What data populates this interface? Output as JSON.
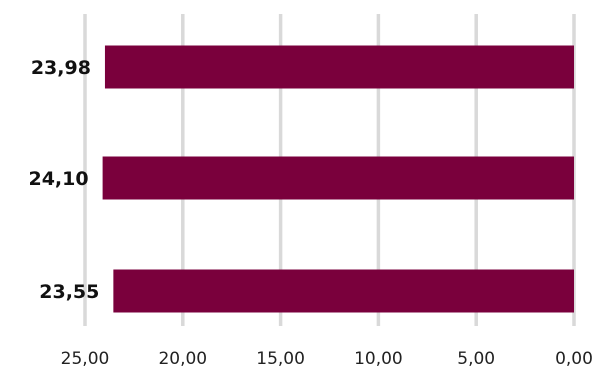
{
  "chart_data": {
    "type": "bar",
    "orientation": "horizontal",
    "x_axis": "reversed",
    "xlim": [
      25,
      0
    ],
    "xticks": [
      "25,00",
      "20,00",
      "15,00",
      "10,00",
      "5,00",
      "0,00"
    ],
    "xtick_values": [
      25,
      20,
      15,
      10,
      5,
      0
    ],
    "categories": [
      "23,98",
      "24,10",
      "23,55"
    ],
    "values": [
      23.98,
      24.1,
      23.55
    ],
    "bar_labels": [
      "23,98",
      "24,10",
      "23,55"
    ],
    "bar_color": "#7a003c",
    "grid": true,
    "title": "",
    "xlabel": "",
    "ylabel": ""
  }
}
